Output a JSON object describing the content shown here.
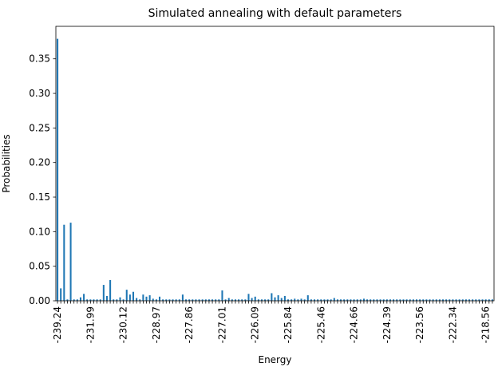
{
  "chart_data": {
    "type": "bar",
    "title": "Simulated annealing with default parameters",
    "xlabel": "Energy",
    "ylabel": "Probabilities",
    "ylim": [
      0,
      0.397
    ],
    "yticks": [
      0.0,
      0.05,
      0.1,
      0.15,
      0.2,
      0.25,
      0.3,
      0.35
    ],
    "ytick_labels": [
      "0.00",
      "0.05",
      "0.10",
      "0.15",
      "0.20",
      "0.25",
      "0.30",
      "0.35"
    ],
    "xtick_labels_every": 10,
    "xtick_labels": [
      "-239.24",
      "-231.99",
      "-230.12",
      "-228.97",
      "-227.86",
      "-227.01",
      "-226.09",
      "-225.84",
      "-225.46",
      "-224.66",
      "-224.39",
      "-223.56",
      "-222.34",
      "-218.56"
    ],
    "bar_count": 133,
    "color": "#1f77b4",
    "grid": false,
    "legend": null,
    "values": [
      0.379,
      0.018,
      0.11,
      0.002,
      0.113,
      0.002,
      0.002,
      0.005,
      0.01,
      0.002,
      0.002,
      0.002,
      0.002,
      0.002,
      0.023,
      0.007,
      0.03,
      0.002,
      0.002,
      0.005,
      0.002,
      0.016,
      0.009,
      0.013,
      0.004,
      0.002,
      0.009,
      0.006,
      0.008,
      0.003,
      0.002,
      0.006,
      0.002,
      0.002,
      0.002,
      0.002,
      0.002,
      0.002,
      0.009,
      0.002,
      0.002,
      0.002,
      0.002,
      0.002,
      0.002,
      0.002,
      0.002,
      0.002,
      0.002,
      0.002,
      0.015,
      0.002,
      0.004,
      0.002,
      0.002,
      0.002,
      0.002,
      0.002,
      0.01,
      0.004,
      0.006,
      0.002,
      0.002,
      0.002,
      0.002,
      0.011,
      0.005,
      0.008,
      0.004,
      0.007,
      0.002,
      0.002,
      0.003,
      0.002,
      0.003,
      0.002,
      0.008,
      0.002,
      0.002,
      0.002,
      0.002,
      0.002,
      0.002,
      0.002,
      0.004,
      0.002,
      0.002,
      0.002,
      0.002,
      0.002,
      0.002,
      0.002,
      0.002,
      0.003,
      0.002,
      0.002,
      0.002,
      0.002,
      0.002,
      0.002,
      0.002,
      0.002,
      0.002,
      0.002,
      0.002,
      0.002,
      0.002,
      0.002,
      0.002,
      0.002,
      0.002,
      0.002,
      0.002,
      0.002,
      0.002,
      0.002,
      0.002,
      0.002,
      0.002,
      0.002,
      0.002,
      0.002,
      0.002,
      0.002,
      0.002,
      0.002,
      0.002,
      0.002,
      0.002,
      0.002,
      0.002,
      0.002,
      0.002
    ]
  }
}
